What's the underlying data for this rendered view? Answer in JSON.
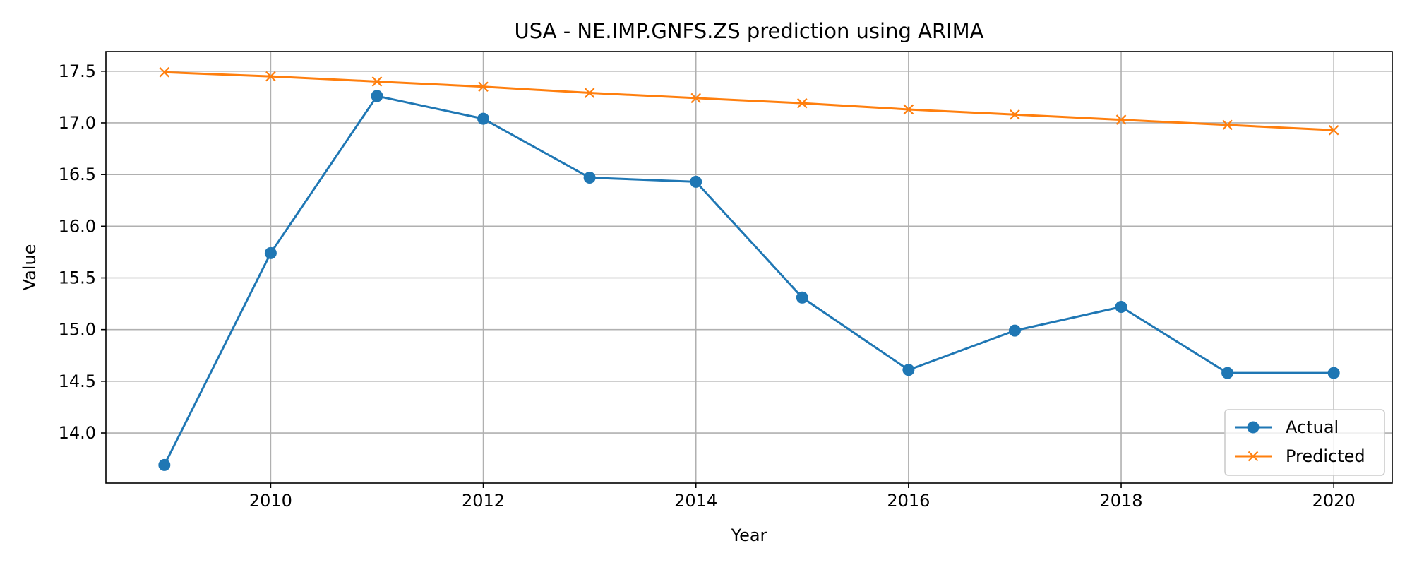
{
  "chart_data": {
    "type": "line",
    "title": "USA - NE.IMP.GNFS.ZS prediction using ARIMA",
    "xlabel": "Year",
    "ylabel": "Value",
    "x": [
      2009,
      2010,
      2011,
      2012,
      2013,
      2014,
      2015,
      2016,
      2017,
      2018,
      2019,
      2020
    ],
    "xlim": [
      2008.45,
      2020.55
    ],
    "ylim": [
      13.515,
      17.69
    ],
    "xticks": [
      2010,
      2012,
      2014,
      2016,
      2018,
      2020
    ],
    "xtick_labels": [
      "2010",
      "2012",
      "2014",
      "2016",
      "2018",
      "2020"
    ],
    "yticks": [
      14.0,
      14.5,
      15.0,
      15.5,
      16.0,
      16.5,
      17.0,
      17.5
    ],
    "ytick_labels": [
      "14.0",
      "14.5",
      "15.0",
      "15.5",
      "16.0",
      "16.5",
      "17.0",
      "17.5"
    ],
    "grid": true,
    "legend_position": "lower-right",
    "series": [
      {
        "name": "Actual",
        "marker": "circle",
        "color": "#1f77b4",
        "values": [
          13.69,
          15.74,
          17.26,
          17.04,
          16.47,
          16.43,
          15.31,
          14.61,
          14.99,
          15.22,
          14.58,
          14.58
        ]
      },
      {
        "name": "Predicted",
        "marker": "x",
        "color": "#ff7f0e",
        "values": [
          17.49,
          17.45,
          17.4,
          17.35,
          17.29,
          17.24,
          17.19,
          17.13,
          17.08,
          17.03,
          16.98,
          16.93
        ]
      }
    ]
  }
}
